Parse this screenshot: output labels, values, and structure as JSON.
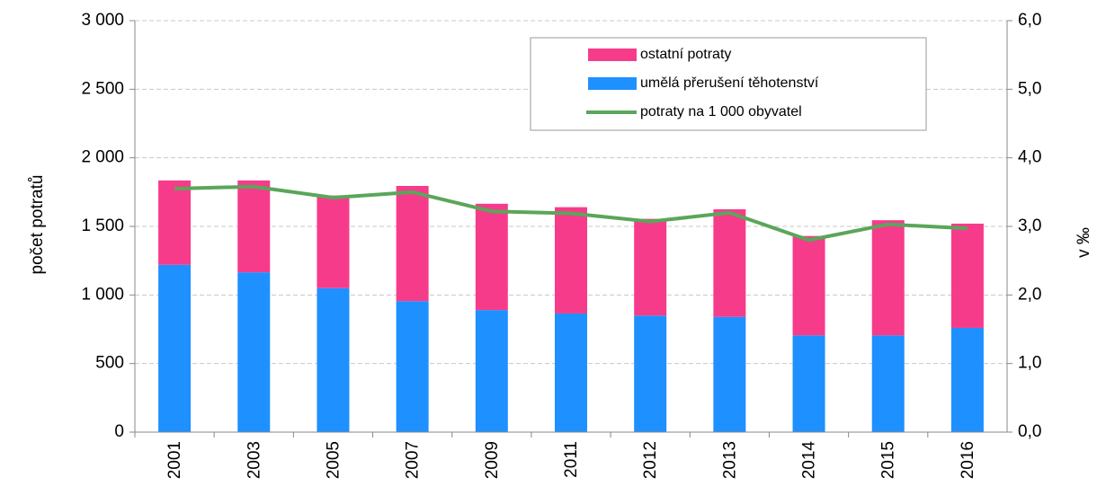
{
  "chart_data": {
    "type": "bar",
    "stacked": true,
    "ylabel": "počet potratů",
    "y2label": "v ‰",
    "categories": [
      "2001",
      "2003",
      "2005",
      "2007",
      "2009",
      "2011",
      "2012",
      "2013",
      "2014",
      "2015",
      "2016"
    ],
    "series": [
      {
        "name": "umělá přerušení těhotenství",
        "type": "bar",
        "color": "#1e90ff",
        "values": [
          1220,
          1165,
          1050,
          955,
          890,
          865,
          850,
          840,
          705,
          705,
          760
        ]
      },
      {
        "name": "ostatní potraty",
        "type": "bar",
        "color": "#f73b8b",
        "values": [
          615,
          670,
          675,
          840,
          775,
          775,
          705,
          785,
          725,
          840,
          760
        ]
      },
      {
        "name": "potraty na 1 000 obyvatel",
        "type": "line",
        "axis": "y2",
        "color": "#5aa65a",
        "values": [
          3.55,
          3.58,
          3.42,
          3.5,
          3.22,
          3.19,
          3.07,
          3.2,
          2.8,
          3.03,
          2.97
        ]
      }
    ],
    "ylim": [
      0,
      3000
    ],
    "yticks": [
      0,
      500,
      {
        "value": 1000,
        "label": "1 000"
      },
      {
        "value": 1500,
        "label": "1 500"
      },
      {
        "value": 2000,
        "label": "2 000"
      },
      {
        "value": 2500,
        "label": "2 500"
      },
      {
        "value": 3000,
        "label": "3 000"
      }
    ],
    "y2lim": [
      0,
      6
    ],
    "y2ticks": [
      {
        "value": 0,
        "label": "0,0"
      },
      {
        "value": 1,
        "label": "1,0"
      },
      {
        "value": 2,
        "label": "2,0"
      },
      {
        "value": 3,
        "label": "3,0"
      },
      {
        "value": 4,
        "label": "4,0"
      },
      {
        "value": 5,
        "label": "5,0"
      },
      {
        "value": 6,
        "label": "6,0"
      }
    ],
    "grid": true,
    "legend_position": "top-right"
  }
}
